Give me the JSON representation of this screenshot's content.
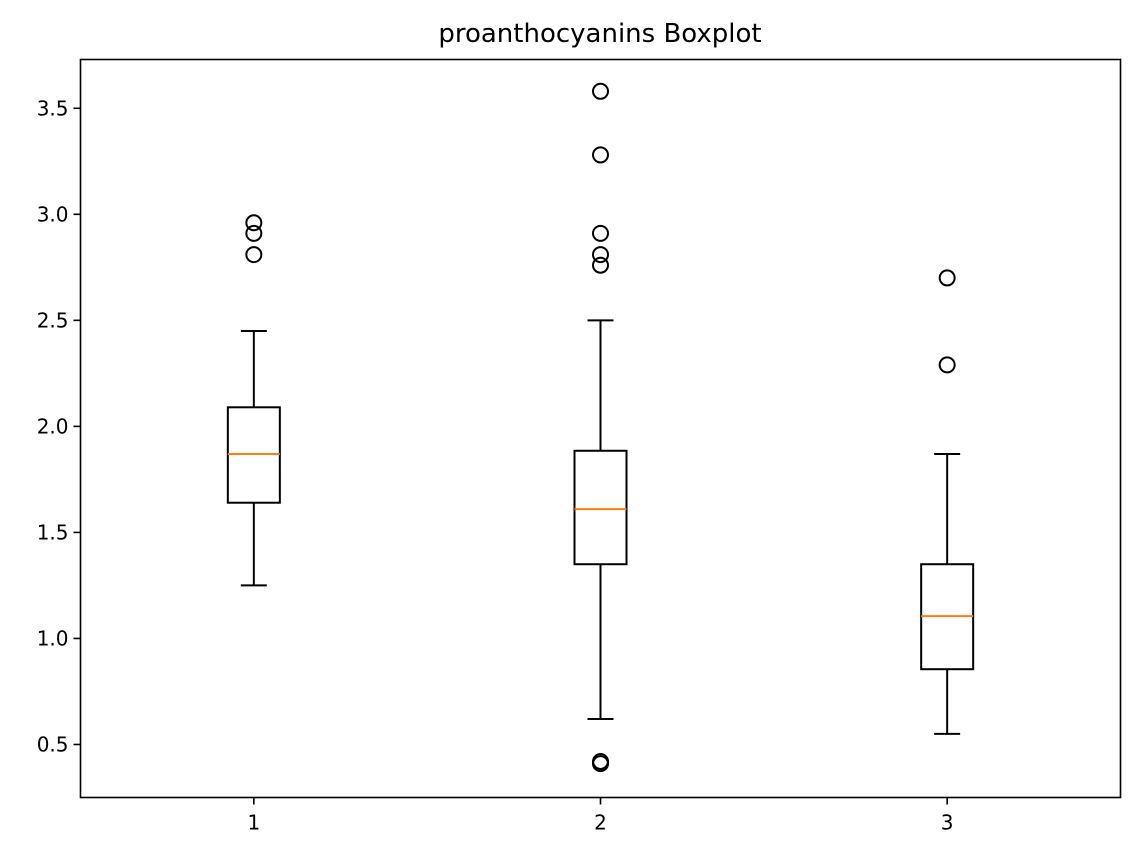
{
  "chart_data": {
    "type": "box",
    "title": "proanthocyanins Boxplot",
    "xlabel": "",
    "ylabel": "",
    "categories": [
      "1",
      "2",
      "3"
    ],
    "ylim": [
      0.25,
      3.73
    ],
    "yticks": [
      0.5,
      1.0,
      1.5,
      2.0,
      2.5,
      3.0,
      3.5
    ],
    "ytick_labels": [
      "0.5",
      "1.0",
      "1.5",
      "2.0",
      "2.5",
      "3.0",
      "3.5"
    ],
    "grid": false,
    "boxes": [
      {
        "category": "1",
        "whisker_low": 1.25,
        "q1": 1.64,
        "median": 1.87,
        "q3": 2.09,
        "whisker_high": 2.45,
        "outliers": [
          2.81,
          2.91,
          2.96
        ]
      },
      {
        "category": "2",
        "whisker_low": 0.62,
        "q1": 1.35,
        "median": 1.61,
        "q3": 1.885,
        "whisker_high": 2.5,
        "outliers": [
          0.41,
          0.42,
          2.76,
          2.81,
          2.91,
          3.28,
          3.58
        ]
      },
      {
        "category": "3",
        "whisker_low": 0.55,
        "q1": 0.855,
        "median": 1.105,
        "q3": 1.35,
        "whisker_high": 1.87,
        "outliers": [
          2.29,
          2.7
        ]
      }
    ],
    "colors": {
      "box": "#000000",
      "median": "#ff7f0e",
      "outlier_edge": "#000000"
    }
  }
}
